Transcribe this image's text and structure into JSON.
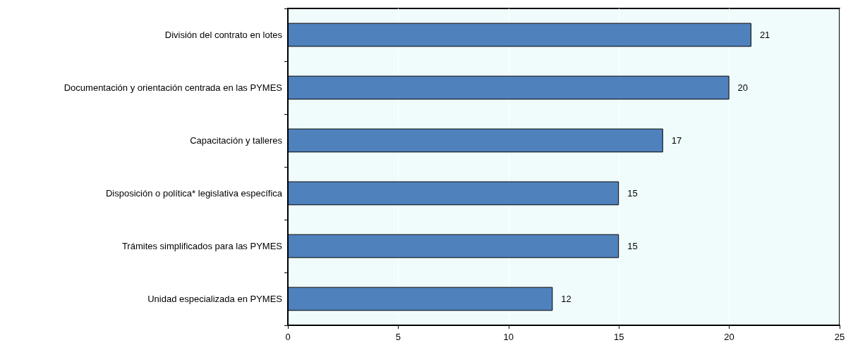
{
  "chart_data": {
    "type": "bar",
    "orientation": "horizontal",
    "categories": [
      "División del contrato en lotes",
      "Documentación y orientación centrada en las PYMES",
      "Capacitación y talleres",
      "Disposición o política* legislativa específica",
      "Trámites simplificados para las PYMES",
      "Unidad especializada en PYMES"
    ],
    "values": [
      21,
      20,
      17,
      15,
      15,
      12
    ],
    "color": "#4f81bd",
    "xlim": [
      0,
      25
    ],
    "xticks": [
      0,
      5,
      10,
      15,
      20,
      25
    ],
    "grid": "x",
    "data_labels": true
  }
}
